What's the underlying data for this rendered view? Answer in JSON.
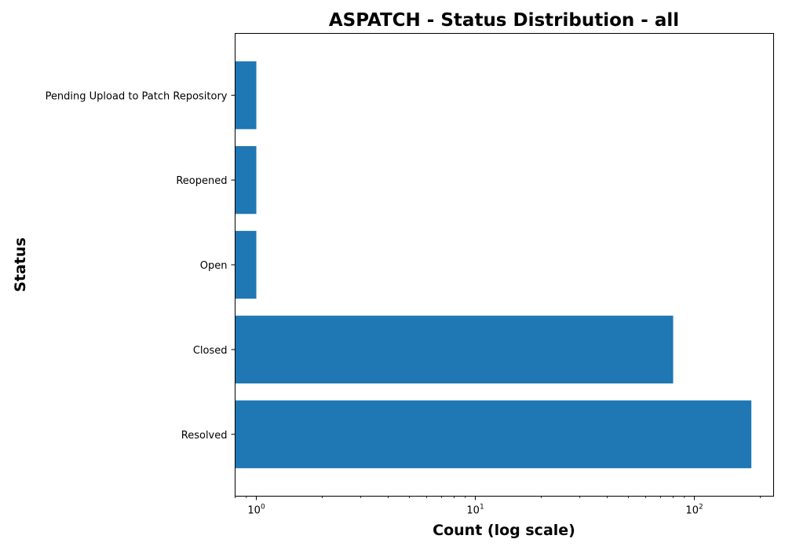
{
  "chart_data": {
    "type": "bar",
    "orientation": "horizontal",
    "title": "ASPATCH - Status Distribution - all",
    "xlabel": "Count (log scale)",
    "ylabel": "Status",
    "xscale": "log",
    "xlim": [
      0.8,
      230
    ],
    "categories": [
      "Resolved",
      "Closed",
      "Open",
      "Reopened",
      "Pending Upload to Patch Repository"
    ],
    "values": [
      182,
      80,
      1,
      1,
      1
    ],
    "x_ticks": [
      {
        "value": 1,
        "base": "10",
        "exp": "0"
      },
      {
        "value": 10,
        "base": "10",
        "exp": "1"
      },
      {
        "value": 100,
        "base": "10",
        "exp": "2"
      }
    ],
    "grid": false,
    "legend": "none",
    "colors": {
      "bar": "#1f77b4",
      "axis": "#000000",
      "background": "#ffffff"
    }
  }
}
